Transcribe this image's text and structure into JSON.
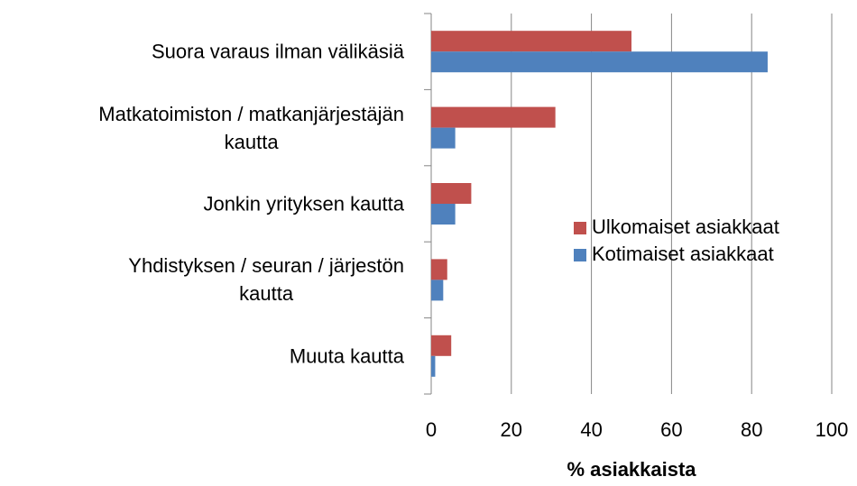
{
  "chart_data": {
    "type": "bar",
    "orientation": "horizontal",
    "categories": [
      "Suora varaus ilman välikäsiä",
      "Matkatoimiston / matkanjärjestäjän\nkautta",
      "Jonkin yrityksen kautta",
      "Yhdistyksen / seuran / järjestön\nkautta",
      "Muuta kautta"
    ],
    "series": [
      {
        "name": "Ulkomaiset asiakkaat",
        "color": "#c0504d",
        "values": [
          50,
          31,
          10,
          4,
          5
        ]
      },
      {
        "name": "Kotimaiset asiakkaat",
        "color": "#4f81bd",
        "values": [
          84,
          6,
          6,
          3,
          1
        ]
      }
    ],
    "xlabel": "% asiakkaista",
    "xlim": [
      0,
      100
    ],
    "xticks": [
      0,
      20,
      40,
      60,
      80,
      100
    ],
    "grid": true,
    "legend": "right"
  }
}
